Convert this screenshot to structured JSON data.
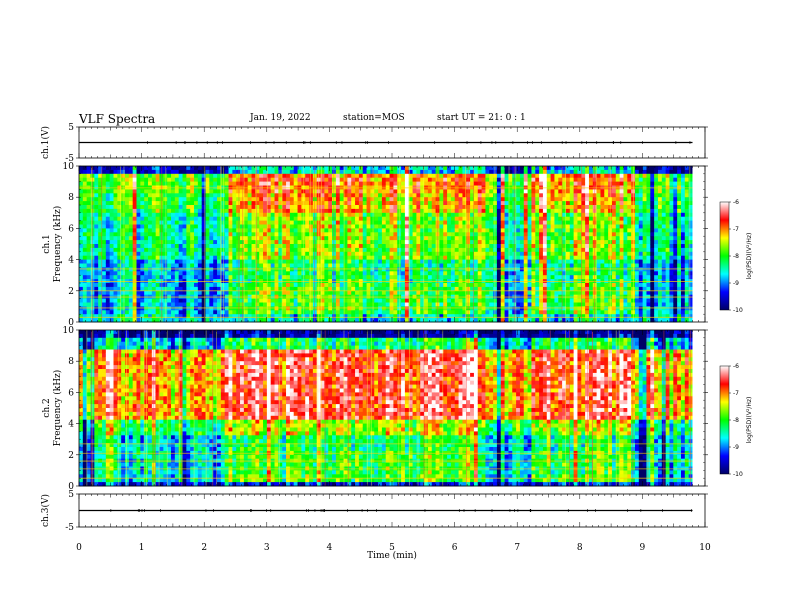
{
  "header": {
    "title": "VLF Spectra",
    "date": "Jan. 19, 2022",
    "station": "station=MOS",
    "start_time": "start UT =  21: 0  : 1"
  },
  "chart_data": [
    {
      "type": "line",
      "name": "ch1-voltage",
      "ylabel": "ch.1(V)",
      "ylim": [
        -5,
        5
      ],
      "yticks": [
        "5",
        "-5"
      ],
      "xlim": [
        0,
        10
      ],
      "x": [
        0,
        9.8
      ],
      "y": [
        0,
        0
      ],
      "color": "#000000"
    },
    {
      "type": "heatmap",
      "name": "ch1-spectrogram",
      "ylabel_line1": "ch.1",
      "ylabel_line2": "Frequency (kHz)",
      "ylim": [
        0,
        10
      ],
      "yticks": [
        "0",
        "2",
        "4",
        "6",
        "8",
        "10"
      ],
      "xlim": [
        0,
        10
      ],
      "data_xmax": 9.8,
      "colorbar_label": "log(PSD)(V²/Hz)",
      "colorbar_range": [
        -10,
        -6
      ],
      "colorbar_ticks": [
        "-6",
        "-7",
        "-8",
        "-9",
        "-10"
      ],
      "active_intervals_min": [
        [
          2.4,
          6.5
        ],
        [
          7.2,
          8.9
        ]
      ]
    },
    {
      "type": "heatmap",
      "name": "ch2-spectrogram",
      "ylabel_line1": "ch.2",
      "ylabel_line2": "Frequency (kHz)",
      "ylim": [
        0,
        10
      ],
      "yticks": [
        "0",
        "2",
        "4",
        "6",
        "8",
        "10"
      ],
      "xlim": [
        0,
        10
      ],
      "data_xmax": 9.8,
      "colorbar_label": "log(PSD)(V²/Hz)",
      "colorbar_range": [
        -10,
        -6
      ],
      "colorbar_ticks": [
        "-6",
        "-7",
        "-8",
        "-9",
        "-10"
      ],
      "active_intervals_min": [
        [
          2.4,
          6.5
        ],
        [
          7.2,
          8.9
        ]
      ]
    },
    {
      "type": "line",
      "name": "ch3-voltage",
      "ylabel": "ch.3(V)",
      "ylim": [
        -5,
        5
      ],
      "yticks": [
        "5",
        "-5"
      ],
      "xlim": [
        0,
        10
      ],
      "x": [
        0,
        9.8
      ],
      "y": [
        0,
        0
      ],
      "color": "#000000",
      "xlabel": "Time (min)",
      "xticks": [
        "0",
        "1",
        "2",
        "3",
        "4",
        "5",
        "6",
        "7",
        "8",
        "9",
        "10"
      ]
    }
  ],
  "colormap": [
    "#000066",
    "#0000ff",
    "#00ffff",
    "#00ff00",
    "#ffff00",
    "#ff0000",
    "#ffffff"
  ]
}
